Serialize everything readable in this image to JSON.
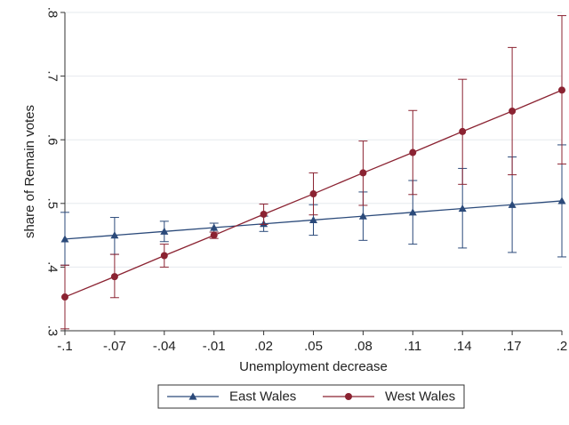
{
  "chart_data": {
    "type": "line",
    "title": "",
    "xlabel": "Unemployment decrease",
    "ylabel": "share of Remain votes",
    "x": [
      -0.1,
      -0.07,
      -0.04,
      -0.01,
      0.02,
      0.05,
      0.08,
      0.11,
      0.14,
      0.17,
      0.2
    ],
    "x_tick_labels": [
      "-.1",
      "-.07",
      "-.04",
      "-.01",
      ".02",
      ".05",
      ".08",
      ".11",
      ".14",
      ".17",
      ".2"
    ],
    "ylim": [
      0.3,
      0.8
    ],
    "y_ticks": [
      0.3,
      0.4,
      0.5,
      0.6,
      0.7,
      0.8
    ],
    "y_tick_labels": [
      ".3",
      ".4",
      ".5",
      ".6",
      ".7",
      ".8"
    ],
    "grid": true,
    "legend_position": "bottom",
    "series": [
      {
        "name": "East Wales",
        "color": "#2b4a7a",
        "marker": "triangle",
        "values": [
          0.444,
          0.45,
          0.456,
          0.462,
          0.468,
          0.474,
          0.48,
          0.486,
          0.492,
          0.498,
          0.504
        ],
        "ci_low": [
          0.403,
          0.42,
          0.44,
          0.455,
          0.456,
          0.45,
          0.442,
          0.436,
          0.43,
          0.423,
          0.416
        ],
        "ci_high": [
          0.486,
          0.478,
          0.472,
          0.469,
          0.48,
          0.498,
          0.518,
          0.536,
          0.555,
          0.573,
          0.592
        ]
      },
      {
        "name": "West Wales",
        "color": "#8b2332",
        "marker": "circle",
        "values": [
          0.353,
          0.385,
          0.418,
          0.45,
          0.483,
          0.515,
          0.548,
          0.58,
          0.613,
          0.645,
          0.678
        ],
        "ci_low": [
          0.303,
          0.352,
          0.4,
          0.445,
          0.467,
          0.482,
          0.497,
          0.514,
          0.53,
          0.545,
          0.562
        ],
        "ci_high": [
          0.403,
          0.42,
          0.436,
          0.455,
          0.499,
          0.548,
          0.598,
          0.646,
          0.695,
          0.745,
          0.795
        ]
      }
    ]
  }
}
